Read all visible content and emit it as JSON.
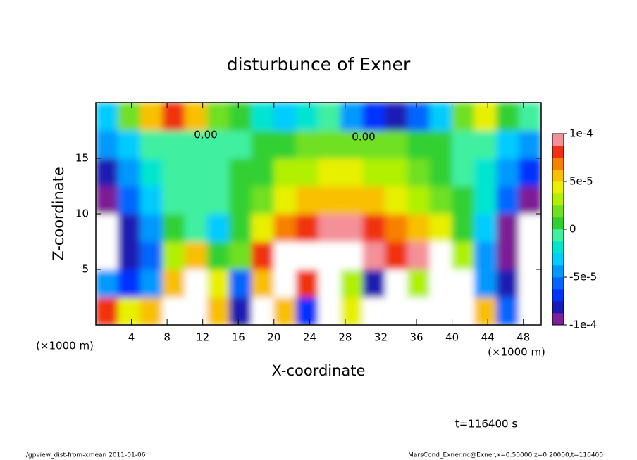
{
  "chart_data": {
    "type": "contour",
    "title": "disturbunce of Exner",
    "x_label": "X-coordinate",
    "y_label": "Z-coordinate",
    "x_unit": "(×1000 m)",
    "time_label": "t=116400 s",
    "footer_left": "./gpview_dist-from-xmean  2011-01-06",
    "footer_right": "MarsCond_Exner.nc@Exner,x=0:50000,z=0:20000,t=116400",
    "contour_labels": [
      "0.00",
      "0.00"
    ],
    "xlim": [
      0,
      50
    ],
    "ylim": [
      0,
      20
    ],
    "xticks": [
      4,
      8,
      12,
      16,
      20,
      24,
      28,
      32,
      36,
      40,
      44,
      48
    ],
    "yticks": [
      5,
      10,
      15
    ],
    "x": [
      1.25,
      3.75,
      6.25,
      8.75,
      11.25,
      13.75,
      16.25,
      18.75,
      21.25,
      23.75,
      26.25,
      28.75,
      31.25,
      33.75,
      36.25,
      38.75,
      41.25,
      43.75,
      46.25,
      48.75
    ],
    "y": [
      1.25,
      3.75,
      6.25,
      8.75,
      11.25,
      13.75,
      16.25,
      18.75
    ],
    "z": [
      [
        8e-05,
        4e-05,
        6e-05,
        0.00012,
        0.00012,
        6e-05,
        -8e-05,
        0.00012,
        6e-05,
        -7e-05,
        0.00012,
        4e-05,
        0.00012,
        0.00012,
        0.00012,
        0.00012,
        0.00012,
        5e-05,
        -6e-05,
        -0.00012
      ],
      [
        -4e-05,
        -7e-05,
        -5e-05,
        6e-05,
        0.00011,
        4e-05,
        -6e-05,
        5e-05,
        0.00012,
        8e-05,
        0.00012,
        3e-05,
        -8e-05,
        0.00011,
        3e-05,
        0.00012,
        0.00012,
        -5e-05,
        -8e-05,
        -0.00011
      ],
      [
        -0.00012,
        -8e-05,
        -6e-05,
        3e-05,
        5e-05,
        0,
        2e-05,
        8e-05,
        0.00011,
        0.00012,
        0.00012,
        0.00012,
        9e-05,
        8e-05,
        9e-05,
        0.00011,
        3e-05,
        -4e-05,
        -9e-05,
        -0.00012
      ],
      [
        -0.00012,
        -8e-05,
        -5e-05,
        0,
        -1e-05,
        -3e-05,
        5e-06,
        4e-05,
        7e-05,
        8e-05,
        9e-05,
        9e-05,
        8e-05,
        7e-05,
        6e-05,
        4e-05,
        1e-05,
        -3e-05,
        -9e-05,
        -0.00012
      ],
      [
        -9e-05,
        -6e-05,
        -3e-05,
        -1e-05,
        -1e-05,
        -5e-06,
        5e-06,
        2e-05,
        4e-05,
        5e-05,
        5.5e-05,
        5.5e-05,
        5e-05,
        4e-05,
        3e-05,
        1.5e-05,
        0,
        -2e-05,
        -6e-05,
        -9e-05
      ],
      [
        -8e-05,
        -5e-05,
        -2e-05,
        -1e-05,
        -1e-05,
        -5e-06,
        0,
        1e-05,
        2.5e-05,
        3.5e-05,
        4e-05,
        4e-05,
        3.5e-05,
        3e-05,
        2e-05,
        1e-05,
        -5e-06,
        -2e-05,
        -4e-05,
        -7e-05
      ],
      [
        -5e-05,
        -3e-05,
        -1e-05,
        -5e-06,
        -5e-06,
        -5e-06,
        -5e-06,
        5e-06,
        1e-05,
        1.5e-05,
        2e-05,
        2e-05,
        2e-05,
        1.5e-05,
        1e-05,
        5e-06,
        -5e-06,
        -1e-05,
        -3e-05,
        -5e-05
      ],
      [
        -3e-05,
        2e-05,
        6e-05,
        8e-05,
        6e-05,
        2e-05,
        0,
        -2e-05,
        -3e-05,
        -2e-05,
        -1e-05,
        -4e-05,
        -7e-05,
        -8e-05,
        -6e-05,
        -3e-05,
        2e-05,
        4e-05,
        1e-05,
        -1e-05
      ]
    ],
    "colorbar": {
      "clim": [
        -0.0001,
        0.0001
      ],
      "colors": [
        "#7d1f96",
        "#1a1ab4",
        "#0033ff",
        "#0066ff",
        "#0099ff",
        "#00ccff",
        "#00e5d0",
        "#40f0a0",
        "#30d030",
        "#70e020",
        "#b0f000",
        "#e8f000",
        "#f8c000",
        "#f88000",
        "#f03010",
        "#f49098"
      ],
      "ticks": [
        {
          "value": 0.0001,
          "label": "1e-4"
        },
        {
          "value": 5e-05,
          "label": "5e-5"
        },
        0,
        {
          "value": -5e-05,
          "label": "-5e-5"
        },
        {
          "value": -0.0001,
          "label": "-1e-4"
        }
      ]
    }
  }
}
